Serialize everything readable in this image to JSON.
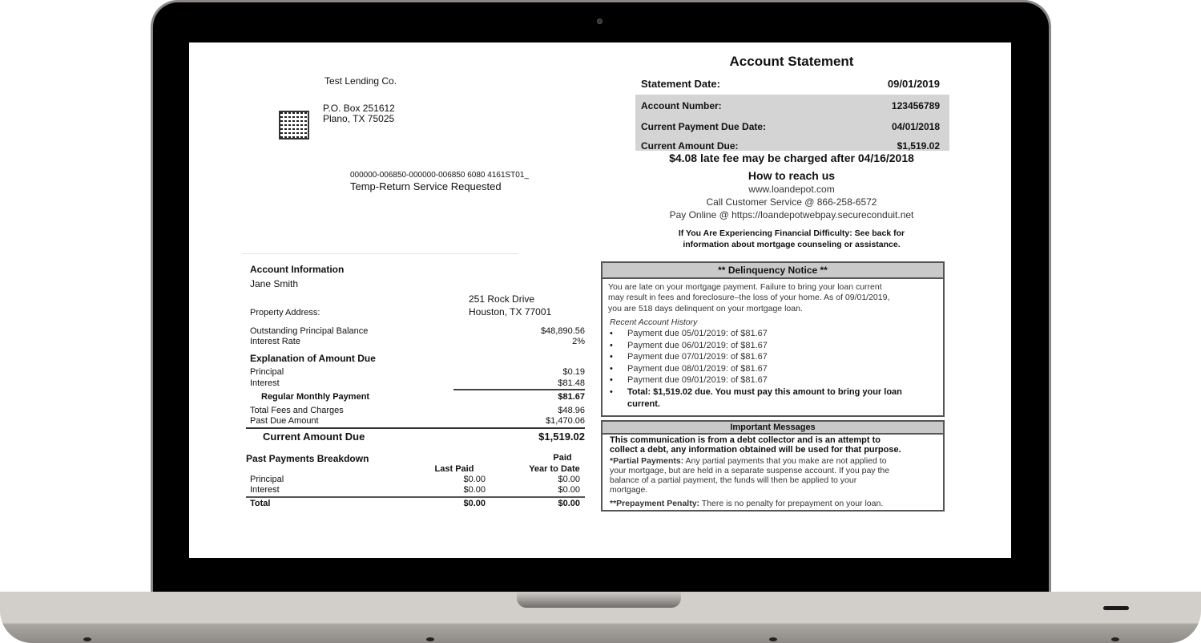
{
  "lender": {
    "name": "Test Lending Co.",
    "address_line1": "P.O. Box 251612",
    "address_line2": "Plano, TX  75025",
    "code": "000000-006850-000000-006850 6080 4161ST01_",
    "service": "Temp-Return Service Requested"
  },
  "statement": {
    "title": "Account Statement",
    "rows": [
      {
        "label": "Statement Date:",
        "value": "09/01/2019"
      },
      {
        "label": "Account Number:",
        "value": "123456789"
      },
      {
        "label": "Current Payment Due Date:",
        "value": "04/01/2018"
      },
      {
        "label": "Current Amount Due:",
        "value": "$1,519.02"
      }
    ],
    "late_fee": "$4.08 late fee may be charged after 04/16/2018"
  },
  "contact": {
    "title": "How to reach us",
    "website": "www.loandepot.com",
    "phone": "Call Customer Service @ 866-258-6572",
    "pay_online": "Pay Online @ https://loandepotwebpay.secureconduit.net",
    "difficulty_1": "If You Are Experiencing Financial Difficulty: See back for",
    "difficulty_2": "information about mortgage counseling or assistance."
  },
  "account": {
    "title": "Account Information",
    "name": "Jane Smith",
    "property_label": "Property Address:",
    "property_line1": "251 Rock Drive",
    "property_line2": "Houston, TX 77001",
    "balance_label": "Outstanding Principal Balance",
    "balance": "$48,890.56",
    "rate_label": "Interest Rate",
    "rate": "2%"
  },
  "explanation": {
    "title": "Explanation of Amount Due",
    "principal_label": "Principal",
    "principal": "$0.19",
    "interest_label": "Interest",
    "interest": "$81.48",
    "regular_label": "Regular Monthly Payment",
    "regular": "$81.67",
    "fees_label": "Total Fees and Charges",
    "fees": "$48.96",
    "past_due_label": "Past Due Amount",
    "past_due": "$1,470.06",
    "current_label": "Current Amount Due",
    "current": "$1,519.02"
  },
  "past_payments": {
    "title": "Past Payments Breakdown",
    "col1": "Last Paid",
    "col2a": "Paid",
    "col2b": "Year to Date",
    "rows": [
      {
        "label": "Principal",
        "last": "$0.00",
        "ytd": "$0.00"
      },
      {
        "label": "Interest",
        "last": "$0.00",
        "ytd": "$0.00"
      },
      {
        "label": "Total",
        "last": "$0.00",
        "ytd": "$0.00"
      }
    ]
  },
  "delinquency": {
    "title": "** Delinquency Notice **",
    "line1": "You are late on your mortgage payment.  Failure to bring your loan current",
    "line2": "may result in fees and foreclosure–the loss of your home. As of 09/01/2019,",
    "line3": "you are 518 days delinquent on your mortgage loan.",
    "history_title": "Recent Account History",
    "items": [
      "Payment due 05/01/2019:  of $81.67",
      "Payment due 06/01/2019:  of $81.67",
      "Payment due 07/01/2019:  of $81.67",
      "Payment due 08/01/2019:  of $81.67",
      "Payment due 09/01/2019:  of $81.67"
    ],
    "total_1": "Total: $1,519.02 due.  You must pay this amount to bring your loan",
    "total_2": "current."
  },
  "messages": {
    "title": "Important Messages",
    "debt_1": "This communication is from a debt collector and is an attempt to",
    "debt_2": "collect a debt, any information obtained will be used for that purpose.",
    "partial_label": "*Partial Payments:",
    "partial_1": " Any partial payments that you make are not applied to",
    "partial_2": "your mortgage, but are held in a separate suspense account.  If you pay the",
    "partial_3": "balance of a partial payment, the funds will then be applied to your",
    "partial_4": "mortgage.",
    "prepay_label": "**Prepayment Penalty:",
    "prepay": "  There is no penalty for prepayment on your loan."
  }
}
